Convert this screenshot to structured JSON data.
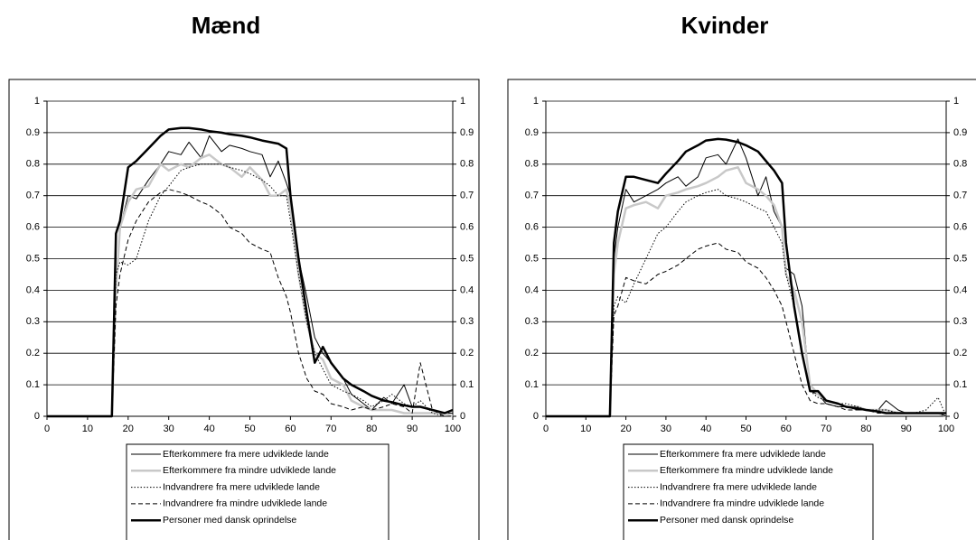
{
  "chart_data": [
    {
      "type": "line",
      "title": "Mænd",
      "x": [
        0,
        15,
        16,
        17,
        18,
        20,
        22,
        25,
        28,
        30,
        33,
        35,
        38,
        40,
        43,
        45,
        48,
        50,
        53,
        55,
        57,
        59,
        60,
        62,
        64,
        66,
        68,
        70,
        73,
        75,
        78,
        80,
        83,
        85,
        88,
        90,
        92,
        95,
        98,
        100
      ],
      "xlim": [
        0,
        100
      ],
      "xticks": [
        0,
        10,
        20,
        30,
        40,
        50,
        60,
        70,
        80,
        90,
        100
      ],
      "ylim": [
        0,
        1
      ],
      "yticks": [
        0,
        0.1,
        0.2,
        0.3,
        0.4,
        0.5,
        0.6,
        0.7,
        0.8,
        0.9,
        1
      ],
      "y2lim": [
        0,
        1
      ],
      "y2ticks": [
        0,
        0.1,
        0.2,
        0.3,
        0.4,
        0.5,
        0.6,
        0.7,
        0.8,
        0.9,
        1
      ],
      "grid": true,
      "legend": "bottom",
      "series": [
        {
          "name": "Efterkommere fra mere udviklede lande",
          "color": "#000000",
          "dash": "none",
          "width": 1,
          "values": [
            0,
            0,
            0,
            0.4,
            0.6,
            0.7,
            0.69,
            0.75,
            0.8,
            0.84,
            0.83,
            0.87,
            0.82,
            0.89,
            0.84,
            0.86,
            0.85,
            0.84,
            0.83,
            0.76,
            0.81,
            0.74,
            0.7,
            0.5,
            0.38,
            0.25,
            0.2,
            0.17,
            0.12,
            0.07,
            0.04,
            0.02,
            0.06,
            0.04,
            0.1,
            0.03,
            0.03,
            0.02,
            0.01,
            0.01
          ]
        },
        {
          "name": "Efterkommere fra mindre udviklede lande",
          "color": "#c8c8c8",
          "dash": "none",
          "width": 2.5,
          "values": [
            0,
            0,
            0,
            0.4,
            0.6,
            0.68,
            0.72,
            0.73,
            0.8,
            0.78,
            0.8,
            0.79,
            0.82,
            0.83,
            0.8,
            0.79,
            0.76,
            0.79,
            0.75,
            0.7,
            0.7,
            0.72,
            0.66,
            0.45,
            0.3,
            0.2,
            0.18,
            0.12,
            0.1,
            0.05,
            0.03,
            0.02,
            0.02,
            0.02,
            0.01,
            0.01,
            0.01,
            0.01,
            0.01,
            0
          ]
        },
        {
          "name": "Indvandrere fra mere udviklede lande",
          "color": "#000000",
          "dash": "1.5 2",
          "width": 1,
          "values": [
            0,
            0,
            0,
            0.45,
            0.49,
            0.48,
            0.5,
            0.62,
            0.7,
            0.73,
            0.78,
            0.79,
            0.8,
            0.8,
            0.8,
            0.79,
            0.78,
            0.77,
            0.75,
            0.73,
            0.7,
            0.7,
            0.62,
            0.45,
            0.3,
            0.2,
            0.15,
            0.1,
            0.08,
            0.07,
            0.05,
            0.03,
            0.05,
            0.07,
            0.04,
            0.03,
            0.05,
            0.01,
            0,
            0
          ]
        },
        {
          "name": "Indvandrere fra mindre udviklede lande",
          "color": "#000000",
          "dash": "5 3",
          "width": 1,
          "values": [
            0,
            0,
            0,
            0.35,
            0.45,
            0.56,
            0.62,
            0.68,
            0.71,
            0.72,
            0.71,
            0.7,
            0.68,
            0.67,
            0.64,
            0.6,
            0.58,
            0.55,
            0.53,
            0.52,
            0.44,
            0.38,
            0.33,
            0.2,
            0.12,
            0.08,
            0.07,
            0.04,
            0.03,
            0.02,
            0.03,
            0.02,
            0.03,
            0.04,
            0.03,
            0.01,
            0.17,
            0.02,
            0,
            0
          ]
        },
        {
          "name": "Personer med dansk oprindelse",
          "color": "#000000",
          "dash": "none",
          "width": 2.5,
          "values": [
            0,
            0,
            0,
            0.58,
            0.62,
            0.79,
            0.81,
            0.85,
            0.89,
            0.91,
            0.915,
            0.915,
            0.91,
            0.905,
            0.9,
            0.895,
            0.89,
            0.885,
            0.875,
            0.87,
            0.865,
            0.85,
            0.7,
            0.5,
            0.33,
            0.17,
            0.22,
            0.17,
            0.12,
            0.1,
            0.08,
            0.065,
            0.05,
            0.045,
            0.035,
            0.03,
            0.03,
            0.02,
            0.01,
            0.02
          ]
        }
      ]
    },
    {
      "type": "line",
      "title": "Kvinder",
      "x": [
        0,
        15,
        16,
        17,
        18,
        20,
        22,
        25,
        28,
        30,
        33,
        35,
        38,
        40,
        43,
        45,
        48,
        50,
        53,
        55,
        57,
        59,
        60,
        62,
        64,
        66,
        68,
        70,
        73,
        75,
        78,
        80,
        83,
        85,
        88,
        90,
        92,
        95,
        98,
        100
      ],
      "xlim": [
        0,
        100
      ],
      "xticks": [
        0,
        10,
        20,
        30,
        40,
        50,
        60,
        70,
        80,
        90,
        100
      ],
      "ylim": [
        0,
        1
      ],
      "yticks": [
        0,
        0.1,
        0.2,
        0.3,
        0.4,
        0.5,
        0.6,
        0.7,
        0.8,
        0.9,
        1
      ],
      "y2lim": [
        0,
        1
      ],
      "y2ticks": [
        0,
        0.1,
        0.2,
        0.3,
        0.4,
        0.5,
        0.6,
        0.7,
        0.8,
        0.9,
        1
      ],
      "grid": true,
      "legend": "bottom",
      "series": [
        {
          "name": "Efterkommere fra mere udviklede lande",
          "color": "#000000",
          "dash": "none",
          "width": 1,
          "values": [
            0,
            0,
            0,
            0.5,
            0.6,
            0.72,
            0.68,
            0.7,
            0.72,
            0.74,
            0.76,
            0.73,
            0.76,
            0.82,
            0.83,
            0.8,
            0.88,
            0.82,
            0.7,
            0.76,
            0.65,
            0.6,
            0.47,
            0.45,
            0.35,
            0.08,
            0.07,
            0.04,
            0.03,
            0.03,
            0.02,
            0.02,
            0.02,
            0.05,
            0.02,
            0.01,
            0.01,
            0.01,
            0.01,
            0
          ]
        },
        {
          "name": "Efterkommere fra mindre udviklede lande",
          "color": "#c8c8c8",
          "dash": "none",
          "width": 2.5,
          "values": [
            0,
            0,
            0,
            0.45,
            0.55,
            0.66,
            0.67,
            0.68,
            0.66,
            0.7,
            0.71,
            0.72,
            0.73,
            0.74,
            0.76,
            0.78,
            0.79,
            0.74,
            0.72,
            0.7,
            0.67,
            0.6,
            0.45,
            0.4,
            0.3,
            0.1,
            0.07,
            0.05,
            0.04,
            0.03,
            0.03,
            0.02,
            0.02,
            0.02,
            0.01,
            0.01,
            0.01,
            0.01,
            0.01,
            0
          ]
        },
        {
          "name": "Indvandrere fra mere udviklede lande",
          "color": "#000000",
          "dash": "1.5 2",
          "width": 1,
          "values": [
            0,
            0,
            0,
            0.35,
            0.38,
            0.36,
            0.42,
            0.5,
            0.58,
            0.6,
            0.65,
            0.68,
            0.7,
            0.71,
            0.72,
            0.7,
            0.69,
            0.68,
            0.66,
            0.65,
            0.6,
            0.55,
            0.45,
            0.35,
            0.2,
            0.08,
            0.06,
            0.05,
            0.04,
            0.04,
            0.03,
            0.02,
            0.02,
            0.02,
            0.01,
            0.01,
            0.01,
            0.02,
            0.06,
            0
          ]
        },
        {
          "name": "Indvandrere fra mindre udviklede lande",
          "color": "#000000",
          "dash": "5 3",
          "width": 1,
          "values": [
            0,
            0,
            0,
            0.32,
            0.35,
            0.44,
            0.43,
            0.42,
            0.45,
            0.46,
            0.48,
            0.5,
            0.53,
            0.54,
            0.55,
            0.53,
            0.52,
            0.49,
            0.47,
            0.44,
            0.4,
            0.35,
            0.3,
            0.2,
            0.1,
            0.05,
            0.04,
            0.04,
            0.03,
            0.02,
            0.02,
            0.02,
            0.01,
            0.01,
            0.01,
            0.01,
            0.01,
            0.01,
            0.01,
            0
          ]
        },
        {
          "name": "Personer med dansk oprindelse",
          "color": "#000000",
          "dash": "none",
          "width": 2.5,
          "values": [
            0,
            0,
            0,
            0.55,
            0.65,
            0.76,
            0.76,
            0.75,
            0.74,
            0.77,
            0.81,
            0.84,
            0.86,
            0.875,
            0.88,
            0.878,
            0.87,
            0.86,
            0.84,
            0.81,
            0.78,
            0.74,
            0.55,
            0.35,
            0.2,
            0.08,
            0.08,
            0.05,
            0.04,
            0.03,
            0.025,
            0.02,
            0.015,
            0.01,
            0.01,
            0.01,
            0.01,
            0.01,
            0.01,
            0.01
          ]
        }
      ]
    }
  ]
}
